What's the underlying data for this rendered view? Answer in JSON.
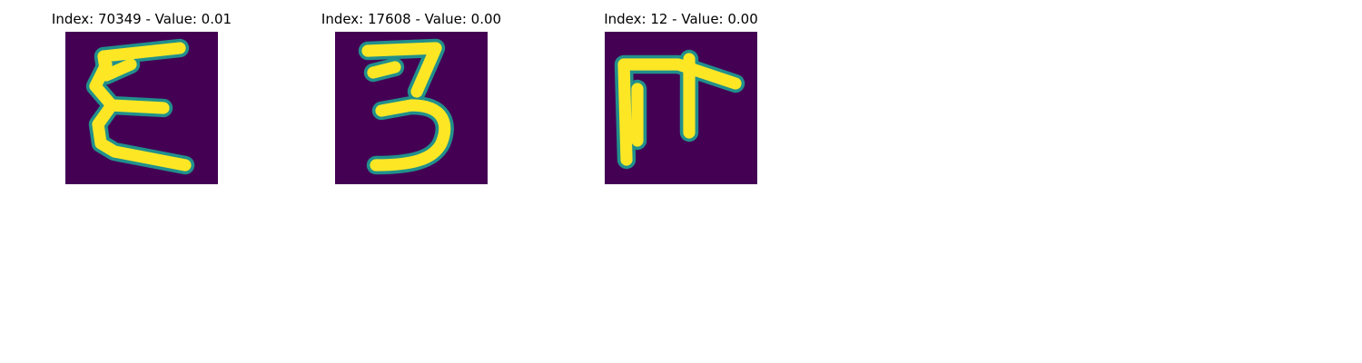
{
  "colormap": {
    "background": "#440154",
    "edge": "#21908c",
    "mid": "#5ec962",
    "foreground": "#fde725"
  },
  "panels": [
    {
      "title": "Index: 70349 - Value: 0.01"
    },
    {
      "title": "Index: 17608 - Value: 0.00"
    },
    {
      "title": "Index: 12 - Value: 0.00"
    }
  ]
}
